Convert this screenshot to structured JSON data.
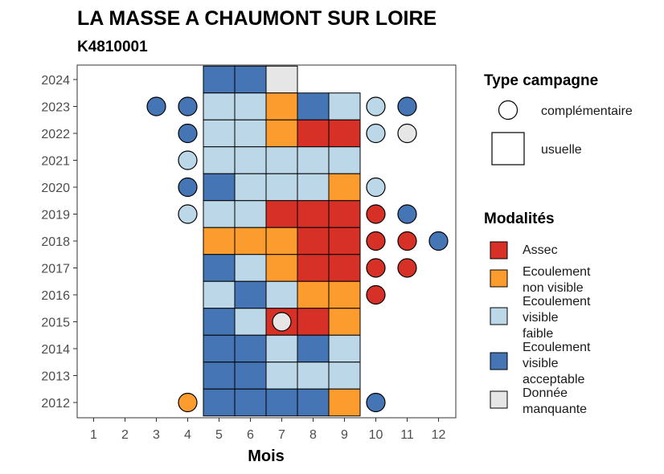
{
  "chart_data": {
    "type": "heatmap",
    "title": "LA MASSE A CHAUMONT SUR LOIRE",
    "subtitle": "K4810001",
    "xlabel": "Mois",
    "ylabel": "",
    "x": [
      1,
      2,
      3,
      4,
      5,
      6,
      7,
      8,
      9,
      10,
      11,
      12
    ],
    "years": [
      2012,
      2013,
      2014,
      2015,
      2016,
      2017,
      2018,
      2019,
      2020,
      2021,
      2022,
      2023,
      2024
    ],
    "xlim": [
      0.5,
      12.5
    ],
    "ylim": [
      2011.5,
      2024.5
    ],
    "grid": false,
    "legend_position": "right",
    "colors": {
      "assec": "#d73027",
      "non_visible": "#fd9c2e",
      "faible": "#bcd7e7",
      "acceptable": "#4575b4",
      "manquante": "#e6e6e6"
    },
    "legend_type": {
      "title": "Type campagne",
      "items": [
        {
          "label": "complémentaire",
          "shape": "circle"
        },
        {
          "label": "usuelle",
          "shape": "square"
        }
      ]
    },
    "legend_modalites": {
      "title": "Modalités",
      "items": [
        {
          "key": "assec",
          "lines": [
            "Assec"
          ]
        },
        {
          "key": "non_visible",
          "lines": [
            "Ecoulement",
            "non visible"
          ]
        },
        {
          "key": "faible",
          "lines": [
            "Ecoulement",
            "visible",
            "faible"
          ]
        },
        {
          "key": "acceptable",
          "lines": [
            "Ecoulement",
            "visible",
            "acceptable"
          ]
        },
        {
          "key": "manquante",
          "lines": [
            "Donnée",
            "manquante"
          ]
        }
      ]
    },
    "usuelle": [
      {
        "year": 2024,
        "month": 5,
        "value": "acceptable"
      },
      {
        "year": 2024,
        "month": 6,
        "value": "acceptable"
      },
      {
        "year": 2024,
        "month": 7,
        "value": "manquante"
      },
      {
        "year": 2023,
        "month": 5,
        "value": "faible"
      },
      {
        "year": 2023,
        "month": 6,
        "value": "faible"
      },
      {
        "year": 2023,
        "month": 7,
        "value": "non_visible"
      },
      {
        "year": 2023,
        "month": 8,
        "value": "acceptable"
      },
      {
        "year": 2023,
        "month": 9,
        "value": "faible"
      },
      {
        "year": 2022,
        "month": 5,
        "value": "faible"
      },
      {
        "year": 2022,
        "month": 6,
        "value": "faible"
      },
      {
        "year": 2022,
        "month": 7,
        "value": "non_visible"
      },
      {
        "year": 2022,
        "month": 8,
        "value": "assec"
      },
      {
        "year": 2022,
        "month": 9,
        "value": "assec"
      },
      {
        "year": 2021,
        "month": 5,
        "value": "faible"
      },
      {
        "year": 2021,
        "month": 6,
        "value": "faible"
      },
      {
        "year": 2021,
        "month": 7,
        "value": "faible"
      },
      {
        "year": 2021,
        "month": 8,
        "value": "faible"
      },
      {
        "year": 2021,
        "month": 9,
        "value": "faible"
      },
      {
        "year": 2020,
        "month": 5,
        "value": "acceptable"
      },
      {
        "year": 2020,
        "month": 6,
        "value": "faible"
      },
      {
        "year": 2020,
        "month": 7,
        "value": "faible"
      },
      {
        "year": 2020,
        "month": 8,
        "value": "faible"
      },
      {
        "year": 2020,
        "month": 9,
        "value": "non_visible"
      },
      {
        "year": 2019,
        "month": 5,
        "value": "faible"
      },
      {
        "year": 2019,
        "month": 6,
        "value": "faible"
      },
      {
        "year": 2019,
        "month": 7,
        "value": "assec"
      },
      {
        "year": 2019,
        "month": 8,
        "value": "assec"
      },
      {
        "year": 2019,
        "month": 9,
        "value": "assec"
      },
      {
        "year": 2018,
        "month": 5,
        "value": "non_visible"
      },
      {
        "year": 2018,
        "month": 6,
        "value": "non_visible"
      },
      {
        "year": 2018,
        "month": 7,
        "value": "non_visible"
      },
      {
        "year": 2018,
        "month": 8,
        "value": "assec"
      },
      {
        "year": 2018,
        "month": 9,
        "value": "assec"
      },
      {
        "year": 2017,
        "month": 5,
        "value": "acceptable"
      },
      {
        "year": 2017,
        "month": 6,
        "value": "faible"
      },
      {
        "year": 2017,
        "month": 7,
        "value": "non_visible"
      },
      {
        "year": 2017,
        "month": 8,
        "value": "assec"
      },
      {
        "year": 2017,
        "month": 9,
        "value": "assec"
      },
      {
        "year": 2016,
        "month": 5,
        "value": "faible"
      },
      {
        "year": 2016,
        "month": 6,
        "value": "acceptable"
      },
      {
        "year": 2016,
        "month": 7,
        "value": "faible"
      },
      {
        "year": 2016,
        "month": 8,
        "value": "non_visible"
      },
      {
        "year": 2016,
        "month": 9,
        "value": "non_visible"
      },
      {
        "year": 2015,
        "month": 5,
        "value": "acceptable"
      },
      {
        "year": 2015,
        "month": 6,
        "value": "faible"
      },
      {
        "year": 2015,
        "month": 7,
        "value": "assec"
      },
      {
        "year": 2015,
        "month": 8,
        "value": "assec"
      },
      {
        "year": 2015,
        "month": 9,
        "value": "non_visible"
      },
      {
        "year": 2014,
        "month": 5,
        "value": "acceptable"
      },
      {
        "year": 2014,
        "month": 6,
        "value": "acceptable"
      },
      {
        "year": 2014,
        "month": 7,
        "value": "faible"
      },
      {
        "year": 2014,
        "month": 8,
        "value": "acceptable"
      },
      {
        "year": 2014,
        "month": 9,
        "value": "faible"
      },
      {
        "year": 2013,
        "month": 5,
        "value": "acceptable"
      },
      {
        "year": 2013,
        "month": 6,
        "value": "acceptable"
      },
      {
        "year": 2013,
        "month": 7,
        "value": "faible"
      },
      {
        "year": 2013,
        "month": 8,
        "value": "faible"
      },
      {
        "year": 2013,
        "month": 9,
        "value": "faible"
      },
      {
        "year": 2012,
        "month": 5,
        "value": "acceptable"
      },
      {
        "year": 2012,
        "month": 6,
        "value": "acceptable"
      },
      {
        "year": 2012,
        "month": 7,
        "value": "acceptable"
      },
      {
        "year": 2012,
        "month": 8,
        "value": "acceptable"
      },
      {
        "year": 2012,
        "month": 9,
        "value": "non_visible"
      }
    ],
    "complementaire": [
      {
        "year": 2023,
        "month": 3,
        "value": "acceptable"
      },
      {
        "year": 2023,
        "month": 4,
        "value": "acceptable"
      },
      {
        "year": 2023,
        "month": 10,
        "value": "faible"
      },
      {
        "year": 2023,
        "month": 11,
        "value": "acceptable"
      },
      {
        "year": 2022,
        "month": 4,
        "value": "acceptable"
      },
      {
        "year": 2022,
        "month": 10,
        "value": "faible"
      },
      {
        "year": 2022,
        "month": 11,
        "value": "manquante"
      },
      {
        "year": 2021,
        "month": 4,
        "value": "faible"
      },
      {
        "year": 2020,
        "month": 4,
        "value": "acceptable"
      },
      {
        "year": 2020,
        "month": 10,
        "value": "faible"
      },
      {
        "year": 2019,
        "month": 4,
        "value": "faible"
      },
      {
        "year": 2019,
        "month": 10,
        "value": "assec"
      },
      {
        "year": 2019,
        "month": 11,
        "value": "acceptable"
      },
      {
        "year": 2018,
        "month": 10,
        "value": "assec"
      },
      {
        "year": 2018,
        "month": 11,
        "value": "assec"
      },
      {
        "year": 2018,
        "month": 12,
        "value": "acceptable"
      },
      {
        "year": 2017,
        "month": 10,
        "value": "assec"
      },
      {
        "year": 2017,
        "month": 11,
        "value": "assec"
      },
      {
        "year": 2016,
        "month": 10,
        "value": "assec"
      },
      {
        "year": 2015,
        "month": 7,
        "value": "manquante"
      },
      {
        "year": 2012,
        "month": 4,
        "value": "non_visible"
      },
      {
        "year": 2012,
        "month": 10,
        "value": "acceptable"
      }
    ]
  }
}
